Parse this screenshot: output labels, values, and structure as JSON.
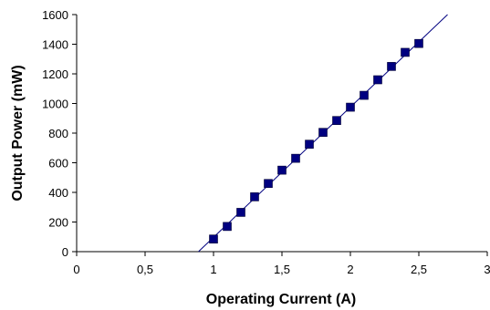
{
  "chart_data": {
    "type": "scatter",
    "title": "",
    "xlabel": "Operating Current (A)",
    "ylabel": "Output Power (mW)",
    "xlim": [
      0,
      3
    ],
    "ylim": [
      0,
      1600
    ],
    "x_ticks": [
      0,
      0.5,
      1,
      1.5,
      2,
      2.5,
      3
    ],
    "x_tick_labels": [
      "0",
      "0,5",
      "1",
      "1,5",
      "2",
      "2,5",
      "3"
    ],
    "y_ticks": [
      0,
      200,
      400,
      600,
      800,
      1000,
      1200,
      1400,
      1600
    ],
    "y_tick_labels": [
      "0",
      "200",
      "400",
      "600",
      "800",
      "1000",
      "1200",
      "1400",
      "1600"
    ],
    "grid": false,
    "legend": "none",
    "series": [
      {
        "x": [
          1.0,
          1.1,
          1.2,
          1.3,
          1.4,
          1.5,
          1.6,
          1.7,
          1.8,
          1.9,
          2.0,
          2.1,
          2.2,
          2.3,
          2.4,
          2.5
        ],
        "y": [
          85,
          170,
          265,
          370,
          460,
          550,
          630,
          725,
          805,
          885,
          975,
          1055,
          1160,
          1250,
          1345,
          1405
        ],
        "color": "#000080",
        "marker": "square"
      }
    ],
    "fit_line": {
      "x": [
        0.89,
        2.71
      ],
      "y": [
        0,
        1600
      ],
      "color": "#000080"
    }
  }
}
